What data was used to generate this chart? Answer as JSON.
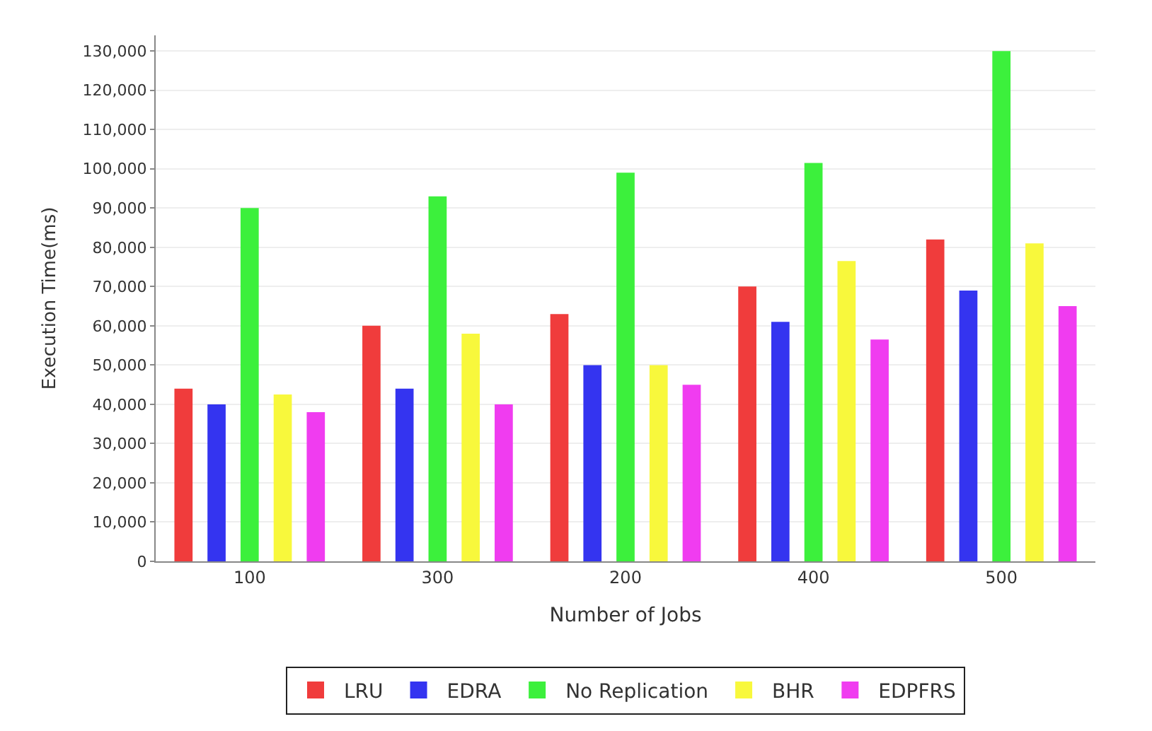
{
  "chart_data": {
    "type": "bar",
    "xlabel": "Number of Jobs",
    "ylabel": "Execution Time(ms)",
    "categories": [
      "100",
      "300",
      "200",
      "400",
      "500"
    ],
    "series": [
      {
        "name": "LRU",
        "color": "#f03c3c",
        "values": [
          44000,
          60000,
          63000,
          70000,
          82000
        ]
      },
      {
        "name": "EDRA",
        "color": "#3434f0",
        "values": [
          40000,
          44000,
          50000,
          61000,
          69000
        ]
      },
      {
        "name": "No Replication",
        "color": "#3cf03c",
        "values": [
          90000,
          93000,
          99000,
          101500,
          130000
        ]
      },
      {
        "name": "BHR",
        "color": "#f8f83c",
        "values": [
          42500,
          58000,
          50000,
          76500,
          81000
        ]
      },
      {
        "name": "EDPFRS",
        "color": "#f03cf0",
        "values": [
          38000,
          40000,
          45000,
          56500,
          65000
        ]
      }
    ],
    "ylim": [
      0,
      134000
    ],
    "yticks": [
      {
        "value": 0,
        "label": "0"
      },
      {
        "value": 10000,
        "label": "10,000"
      },
      {
        "value": 20000,
        "label": "20,000"
      },
      {
        "value": 30000,
        "label": "30,000"
      },
      {
        "value": 40000,
        "label": "40,000"
      },
      {
        "value": 50000,
        "label": "50,000"
      },
      {
        "value": 60000,
        "label": "60,000"
      },
      {
        "value": 70000,
        "label": "70,000"
      },
      {
        "value": 80000,
        "label": "80,000"
      },
      {
        "value": 90000,
        "label": "90,000"
      },
      {
        "value": 100000,
        "label": "100,000"
      },
      {
        "value": 110000,
        "label": "110,000"
      },
      {
        "value": 120000,
        "label": "120,000"
      },
      {
        "value": 130000,
        "label": "130,000"
      }
    ],
    "grid": "y",
    "legend": "bottom"
  }
}
